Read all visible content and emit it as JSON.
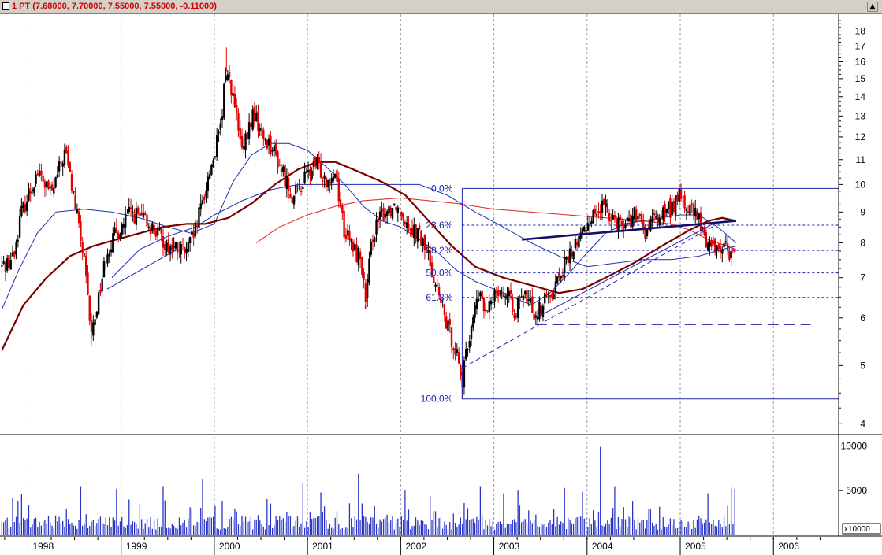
{
  "window": {
    "title": "1 PT (7.68000, 7.70000, 7.55000, 7.55000, -0.11000)",
    "scroll_up_icon": "triangle-up-icon"
  },
  "colors": {
    "up_candle": "#000000",
    "down_candle": "#e00000",
    "ma_blue": "#1a2fb0",
    "ma_red": "#e02020",
    "ma_darkred": "#7a0000",
    "fib": "#1e22aa",
    "trend": "#1e22aa",
    "volume": "#2a35c8",
    "grid": "#9a9a9a"
  },
  "chart_data": [
    {
      "type": "candlestick",
      "title": "",
      "x_axis": {
        "type": "time",
        "tick_labels": [
          "1998",
          "1999",
          "2000",
          "2001",
          "2002",
          "2003",
          "2004",
          "2005",
          "2006"
        ],
        "range": [
          1997.7,
          2006.7
        ]
      },
      "y_axis": {
        "scale": "log",
        "range": [
          3.85,
          19.2
        ],
        "tick_labels": [
          "4",
          "5",
          "6",
          "7",
          "8",
          "9",
          "10",
          "11",
          "12",
          "13",
          "14",
          "15",
          "16",
          "17",
          "18"
        ]
      },
      "key_points": [
        {
          "t": 1997.72,
          "v": 7.3
        },
        {
          "t": 1997.85,
          "v": 7.6
        },
        {
          "t": 1997.92,
          "v": 8.9
        },
        {
          "t": 1998.1,
          "v": 10.5
        },
        {
          "t": 1998.25,
          "v": 9.6
        },
        {
          "t": 1998.4,
          "v": 11.4
        },
        {
          "t": 1998.52,
          "v": 9.0
        },
        {
          "t": 1998.6,
          "v": 7.5
        },
        {
          "t": 1998.68,
          "v": 5.6
        },
        {
          "t": 1998.85,
          "v": 7.8
        },
        {
          "t": 1999.1,
          "v": 9.0
        },
        {
          "t": 1999.3,
          "v": 8.6
        },
        {
          "t": 1999.5,
          "v": 7.9
        },
        {
          "t": 1999.7,
          "v": 7.7
        },
        {
          "t": 1999.8,
          "v": 8.4
        },
        {
          "t": 1999.95,
          "v": 10.5
        },
        {
          "t": 2000.08,
          "v": 12.6
        },
        {
          "t": 2000.12,
          "v": 15.6
        },
        {
          "t": 2000.18,
          "v": 14.6
        },
        {
          "t": 2000.3,
          "v": 11.2
        },
        {
          "t": 2000.42,
          "v": 13.2
        },
        {
          "t": 2000.52,
          "v": 12.0
        },
        {
          "t": 2000.6,
          "v": 11.7
        },
        {
          "t": 2000.72,
          "v": 10.6
        },
        {
          "t": 2000.85,
          "v": 9.5
        },
        {
          "t": 2000.98,
          "v": 10.3
        },
        {
          "t": 2001.1,
          "v": 10.8
        },
        {
          "t": 2001.2,
          "v": 10.2
        },
        {
          "t": 2001.3,
          "v": 10.5
        },
        {
          "t": 2001.4,
          "v": 8.3
        },
        {
          "t": 2001.5,
          "v": 7.8
        },
        {
          "t": 2001.58,
          "v": 7.5
        },
        {
          "t": 2001.62,
          "v": 6.3
        },
        {
          "t": 2001.7,
          "v": 8.3
        },
        {
          "t": 2001.82,
          "v": 9.0
        },
        {
          "t": 2001.95,
          "v": 9.3
        },
        {
          "t": 2002.1,
          "v": 8.6
        },
        {
          "t": 2002.2,
          "v": 8.2
        },
        {
          "t": 2002.3,
          "v": 7.6
        },
        {
          "t": 2002.4,
          "v": 6.6
        },
        {
          "t": 2002.5,
          "v": 5.8
        },
        {
          "t": 2002.6,
          "v": 5.3
        },
        {
          "t": 2002.66,
          "v": 4.7
        },
        {
          "t": 2002.76,
          "v": 5.9
        },
        {
          "t": 2002.85,
          "v": 6.6
        },
        {
          "t": 2002.92,
          "v": 6.0
        },
        {
          "t": 2003.02,
          "v": 6.8
        },
        {
          "t": 2003.12,
          "v": 6.6
        },
        {
          "t": 2003.22,
          "v": 6.2
        },
        {
          "t": 2003.35,
          "v": 6.5
        },
        {
          "t": 2003.45,
          "v": 6.1
        },
        {
          "t": 2003.55,
          "v": 6.4
        },
        {
          "t": 2003.65,
          "v": 6.8
        },
        {
          "t": 2003.75,
          "v": 7.3
        },
        {
          "t": 2003.85,
          "v": 7.8
        },
        {
          "t": 2003.95,
          "v": 8.3
        },
        {
          "t": 2004.05,
          "v": 8.9
        },
        {
          "t": 2004.18,
          "v": 9.2
        },
        {
          "t": 2004.3,
          "v": 8.8
        },
        {
          "t": 2004.4,
          "v": 8.6
        },
        {
          "t": 2004.52,
          "v": 8.9
        },
        {
          "t": 2004.62,
          "v": 8.3
        },
        {
          "t": 2004.72,
          "v": 8.7
        },
        {
          "t": 2004.82,
          "v": 9.0
        },
        {
          "t": 2004.9,
          "v": 9.1
        },
        {
          "t": 2004.98,
          "v": 9.6
        },
        {
          "t": 2005.08,
          "v": 9.1
        },
        {
          "t": 2005.18,
          "v": 8.9
        },
        {
          "t": 2005.25,
          "v": 8.2
        },
        {
          "t": 2005.35,
          "v": 7.9
        },
        {
          "t": 2005.45,
          "v": 7.9
        },
        {
          "t": 2005.55,
          "v": 7.7
        },
        {
          "t": 2005.6,
          "v": 7.55
        }
      ],
      "last_bar": {
        "open": 7.68,
        "high": 7.7,
        "low": 7.55,
        "close": 7.55,
        "change": -0.11
      },
      "moving_averages": [
        {
          "color": "blue",
          "points": [
            {
              "t": 1997.72,
              "v": 6.2
            },
            {
              "t": 1997.9,
              "v": 7.2
            },
            {
              "t": 1998.1,
              "v": 8.3
            },
            {
              "t": 1998.3,
              "v": 9.0
            },
            {
              "t": 1998.6,
              "v": 9.1
            },
            {
              "t": 1998.9,
              "v": 9.0
            },
            {
              "t": 1999.2,
              "v": 8.8
            },
            {
              "t": 1999.5,
              "v": 8.5
            },
            {
              "t": 1999.75,
              "v": 8.3
            },
            {
              "t": 2000.0,
              "v": 8.6
            },
            {
              "t": 2000.2,
              "v": 10.1
            },
            {
              "t": 2000.4,
              "v": 11.2
            },
            {
              "t": 2000.6,
              "v": 11.7
            },
            {
              "t": 2000.8,
              "v": 11.7
            },
            {
              "t": 2001.0,
              "v": 11.4
            },
            {
              "t": 2001.2,
              "v": 10.7
            },
            {
              "t": 2001.4,
              "v": 10.0
            },
            {
              "t": 2001.6,
              "v": 9.2
            },
            {
              "t": 2001.8,
              "v": 8.7
            },
            {
              "t": 2002.0,
              "v": 8.5
            },
            {
              "t": 2002.2,
              "v": 8.1
            },
            {
              "t": 2002.4,
              "v": 7.7
            },
            {
              "t": 2002.6,
              "v": 7.2
            },
            {
              "t": 2002.8,
              "v": 6.9
            },
            {
              "t": 2003.0,
              "v": 6.7
            },
            {
              "t": 2003.2,
              "v": 6.5
            },
            {
              "t": 2003.4,
              "v": 6.3
            },
            {
              "t": 2003.6,
              "v": 6.6
            },
            {
              "t": 2003.8,
              "v": 7.1
            },
            {
              "t": 2004.0,
              "v": 7.7
            },
            {
              "t": 2004.2,
              "v": 8.3
            },
            {
              "t": 2004.4,
              "v": 8.6
            },
            {
              "t": 2004.6,
              "v": 8.7
            },
            {
              "t": 2004.8,
              "v": 8.8
            },
            {
              "t": 2005.0,
              "v": 8.9
            },
            {
              "t": 2005.2,
              "v": 8.9
            },
            {
              "t": 2005.4,
              "v": 8.5
            },
            {
              "t": 2005.6,
              "v": 8.0
            }
          ]
        },
        {
          "color": "blue",
          "points": [
            {
              "t": 1998.9,
              "v": 7.0
            },
            {
              "t": 1999.2,
              "v": 7.8
            },
            {
              "t": 1999.5,
              "v": 8.2
            },
            {
              "t": 1999.8,
              "v": 8.5
            },
            {
              "t": 2000.0,
              "v": 8.9
            },
            {
              "t": 2000.3,
              "v": 9.4
            },
            {
              "t": 2000.6,
              "v": 9.8
            },
            {
              "t": 2000.9,
              "v": 10.0
            },
            {
              "t": 2001.2,
              "v": 10.0
            },
            {
              "t": 2001.5,
              "v": 10.0
            },
            {
              "t": 2001.8,
              "v": 10.0
            },
            {
              "t": 2002.2,
              "v": 10.0
            },
            {
              "t": 2002.5,
              "v": 9.6
            },
            {
              "t": 2002.8,
              "v": 9.0
            },
            {
              "t": 2003.1,
              "v": 8.5
            },
            {
              "t": 2003.4,
              "v": 8.0
            },
            {
              "t": 2003.7,
              "v": 7.6
            },
            {
              "t": 2004.0,
              "v": 7.3
            },
            {
              "t": 2004.3,
              "v": 7.4
            },
            {
              "t": 2004.6,
              "v": 7.5
            },
            {
              "t": 2004.9,
              "v": 7.5
            },
            {
              "t": 2005.2,
              "v": 7.6
            },
            {
              "t": 2005.45,
              "v": 7.8
            },
            {
              "t": 2005.6,
              "v": 7.9
            }
          ]
        },
        {
          "color": "red",
          "points": [
            {
              "t": 2000.45,
              "v": 8.0
            },
            {
              "t": 2000.7,
              "v": 8.5
            },
            {
              "t": 2001.0,
              "v": 8.9
            },
            {
              "t": 2001.3,
              "v": 9.2
            },
            {
              "t": 2001.6,
              "v": 9.4
            },
            {
              "t": 2002.0,
              "v": 9.5
            },
            {
              "t": 2002.3,
              "v": 9.4
            },
            {
              "t": 2002.6,
              "v": 9.3
            },
            {
              "t": 2003.0,
              "v": 9.1
            },
            {
              "t": 2003.4,
              "v": 9.0
            },
            {
              "t": 2003.8,
              "v": 8.9
            },
            {
              "t": 2004.2,
              "v": 8.8
            },
            {
              "t": 2004.6,
              "v": 8.7
            },
            {
              "t": 2004.9,
              "v": 8.6
            },
            {
              "t": 2005.1,
              "v": 8.4
            },
            {
              "t": 2005.3,
              "v": 8.1
            },
            {
              "t": 2005.6,
              "v": 7.8
            }
          ]
        },
        {
          "color": "darkred",
          "points": [
            {
              "t": 1997.72,
              "v": 5.3
            },
            {
              "t": 1997.95,
              "v": 6.3
            },
            {
              "t": 1998.2,
              "v": 7.0
            },
            {
              "t": 1998.45,
              "v": 7.6
            },
            {
              "t": 1998.7,
              "v": 7.9
            },
            {
              "t": 1998.95,
              "v": 8.1
            },
            {
              "t": 1999.2,
              "v": 8.3
            },
            {
              "t": 1999.45,
              "v": 8.5
            },
            {
              "t": 1999.7,
              "v": 8.6
            },
            {
              "t": 1999.9,
              "v": 8.6
            },
            {
              "t": 2000.15,
              "v": 8.8
            },
            {
              "t": 2000.4,
              "v": 9.3
            },
            {
              "t": 2000.65,
              "v": 10.0
            },
            {
              "t": 2000.9,
              "v": 10.6
            },
            {
              "t": 2001.1,
              "v": 10.9
            },
            {
              "t": 2001.3,
              "v": 10.9
            },
            {
              "t": 2001.55,
              "v": 10.5
            },
            {
              "t": 2001.8,
              "v": 10.1
            },
            {
              "t": 2002.05,
              "v": 9.6
            },
            {
              "t": 2002.3,
              "v": 8.7
            },
            {
              "t": 2002.55,
              "v": 7.9
            },
            {
              "t": 2002.8,
              "v": 7.3
            },
            {
              "t": 2003.1,
              "v": 7.0
            },
            {
              "t": 2003.4,
              "v": 6.8
            },
            {
              "t": 2003.7,
              "v": 6.6
            },
            {
              "t": 2003.95,
              "v": 6.7
            },
            {
              "t": 2004.2,
              "v": 7.0
            },
            {
              "t": 2004.5,
              "v": 7.4
            },
            {
              "t": 2004.8,
              "v": 7.9
            },
            {
              "t": 2005.1,
              "v": 8.4
            },
            {
              "t": 2005.3,
              "v": 8.7
            },
            {
              "t": 2005.45,
              "v": 8.8
            },
            {
              "t": 2005.6,
              "v": 8.7
            }
          ]
        }
      ],
      "fibonacci": {
        "high": 9.85,
        "low": 4.4,
        "start_t": 2002.66,
        "end_t": 2006.7,
        "levels": [
          {
            "label": "0.0%",
            "value": 9.85,
            "style": "solid"
          },
          {
            "label": "23.6%",
            "value": 8.56,
            "style": "dashed"
          },
          {
            "label": "38.2%",
            "value": 7.77,
            "style": "dashed"
          },
          {
            "label": "50.0%",
            "value": 7.13,
            "style": "dashed"
          },
          {
            "label": "61.8%",
            "value": 6.49,
            "style": "dashed"
          },
          {
            "label": "100.0%",
            "value": 4.4,
            "style": "solid"
          }
        ]
      },
      "trendlines": [
        {
          "style": "dashed",
          "from": {
            "t": 2002.66,
            "v": 4.95
          },
          "to": {
            "t": 2005.4,
            "v": 8.6
          }
        },
        {
          "style": "solid",
          "from": {
            "t": 2003.45,
            "v": 6.0
          },
          "to": {
            "t": 2005.35,
            "v": 8.6
          }
        },
        {
          "style": "thick",
          "from": {
            "t": 2003.3,
            "v": 8.1
          },
          "to": {
            "t": 2005.6,
            "v": 8.7
          }
        },
        {
          "style": "long-dashed",
          "from": {
            "t": 2003.45,
            "v": 5.85
          },
          "to": {
            "t": 2006.4,
            "v": 5.85
          }
        },
        {
          "style": "solid",
          "from": {
            "t": 1998.85,
            "v": 6.7
          },
          "to": {
            "t": 1999.6,
            "v": 7.8
          }
        }
      ]
    },
    {
      "type": "bar",
      "title": "",
      "series_name": "volume",
      "y_axis": {
        "range": [
          0,
          11000
        ],
        "tick_labels": [
          "5000",
          "10000"
        ],
        "unit_label": "x10000"
      },
      "x_axis": {
        "range": [
          1997.7,
          2006.7
        ]
      },
      "summary": {
        "typical": 1400,
        "spikes": [
          {
            "t": 1998.57,
            "v": 5500
          },
          {
            "t": 1998.95,
            "v": 5200
          },
          {
            "t": 1999.45,
            "v": 5500
          },
          {
            "t": 1999.88,
            "v": 6300
          },
          {
            "t": 2000.95,
            "v": 5800
          },
          {
            "t": 2001.15,
            "v": 4800
          },
          {
            "t": 2001.55,
            "v": 6900
          },
          {
            "t": 2002.05,
            "v": 5000
          },
          {
            "t": 2002.85,
            "v": 5500
          },
          {
            "t": 2003.1,
            "v": 4700
          },
          {
            "t": 2003.25,
            "v": 5000
          },
          {
            "t": 2003.75,
            "v": 5300
          },
          {
            "t": 2004.15,
            "v": 9900
          },
          {
            "t": 2004.3,
            "v": 5500
          },
          {
            "t": 2005.3,
            "v": 4700
          },
          {
            "t": 2005.58,
            "v": 5200
          }
        ]
      }
    }
  ]
}
